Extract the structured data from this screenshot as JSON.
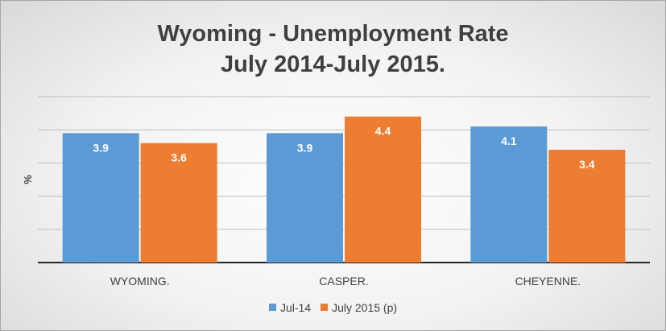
{
  "chart_data": {
    "type": "bar",
    "title_line1": "Wyoming - Unemployment Rate",
    "title_line2": "July 2014-July 2015.",
    "ylabel": "%",
    "xlabel": "",
    "categories": [
      "WYOMING.",
      "CASPER.",
      "CHEYENNE."
    ],
    "series": [
      {
        "name": "Jul-14",
        "values": [
          3.9,
          3.9,
          4.1
        ],
        "color": "#5b9bd5"
      },
      {
        "name": "July 2015 (p)",
        "values": [
          3.6,
          4.4,
          3.4
        ],
        "color": "#ed7d31"
      }
    ],
    "ylim": [
      0,
      5
    ],
    "grid": true,
    "legend_position": "bottom",
    "data_labels": [
      "3.9",
      "3.6",
      "3.9",
      "4.4",
      "4.1",
      "3.4"
    ]
  }
}
